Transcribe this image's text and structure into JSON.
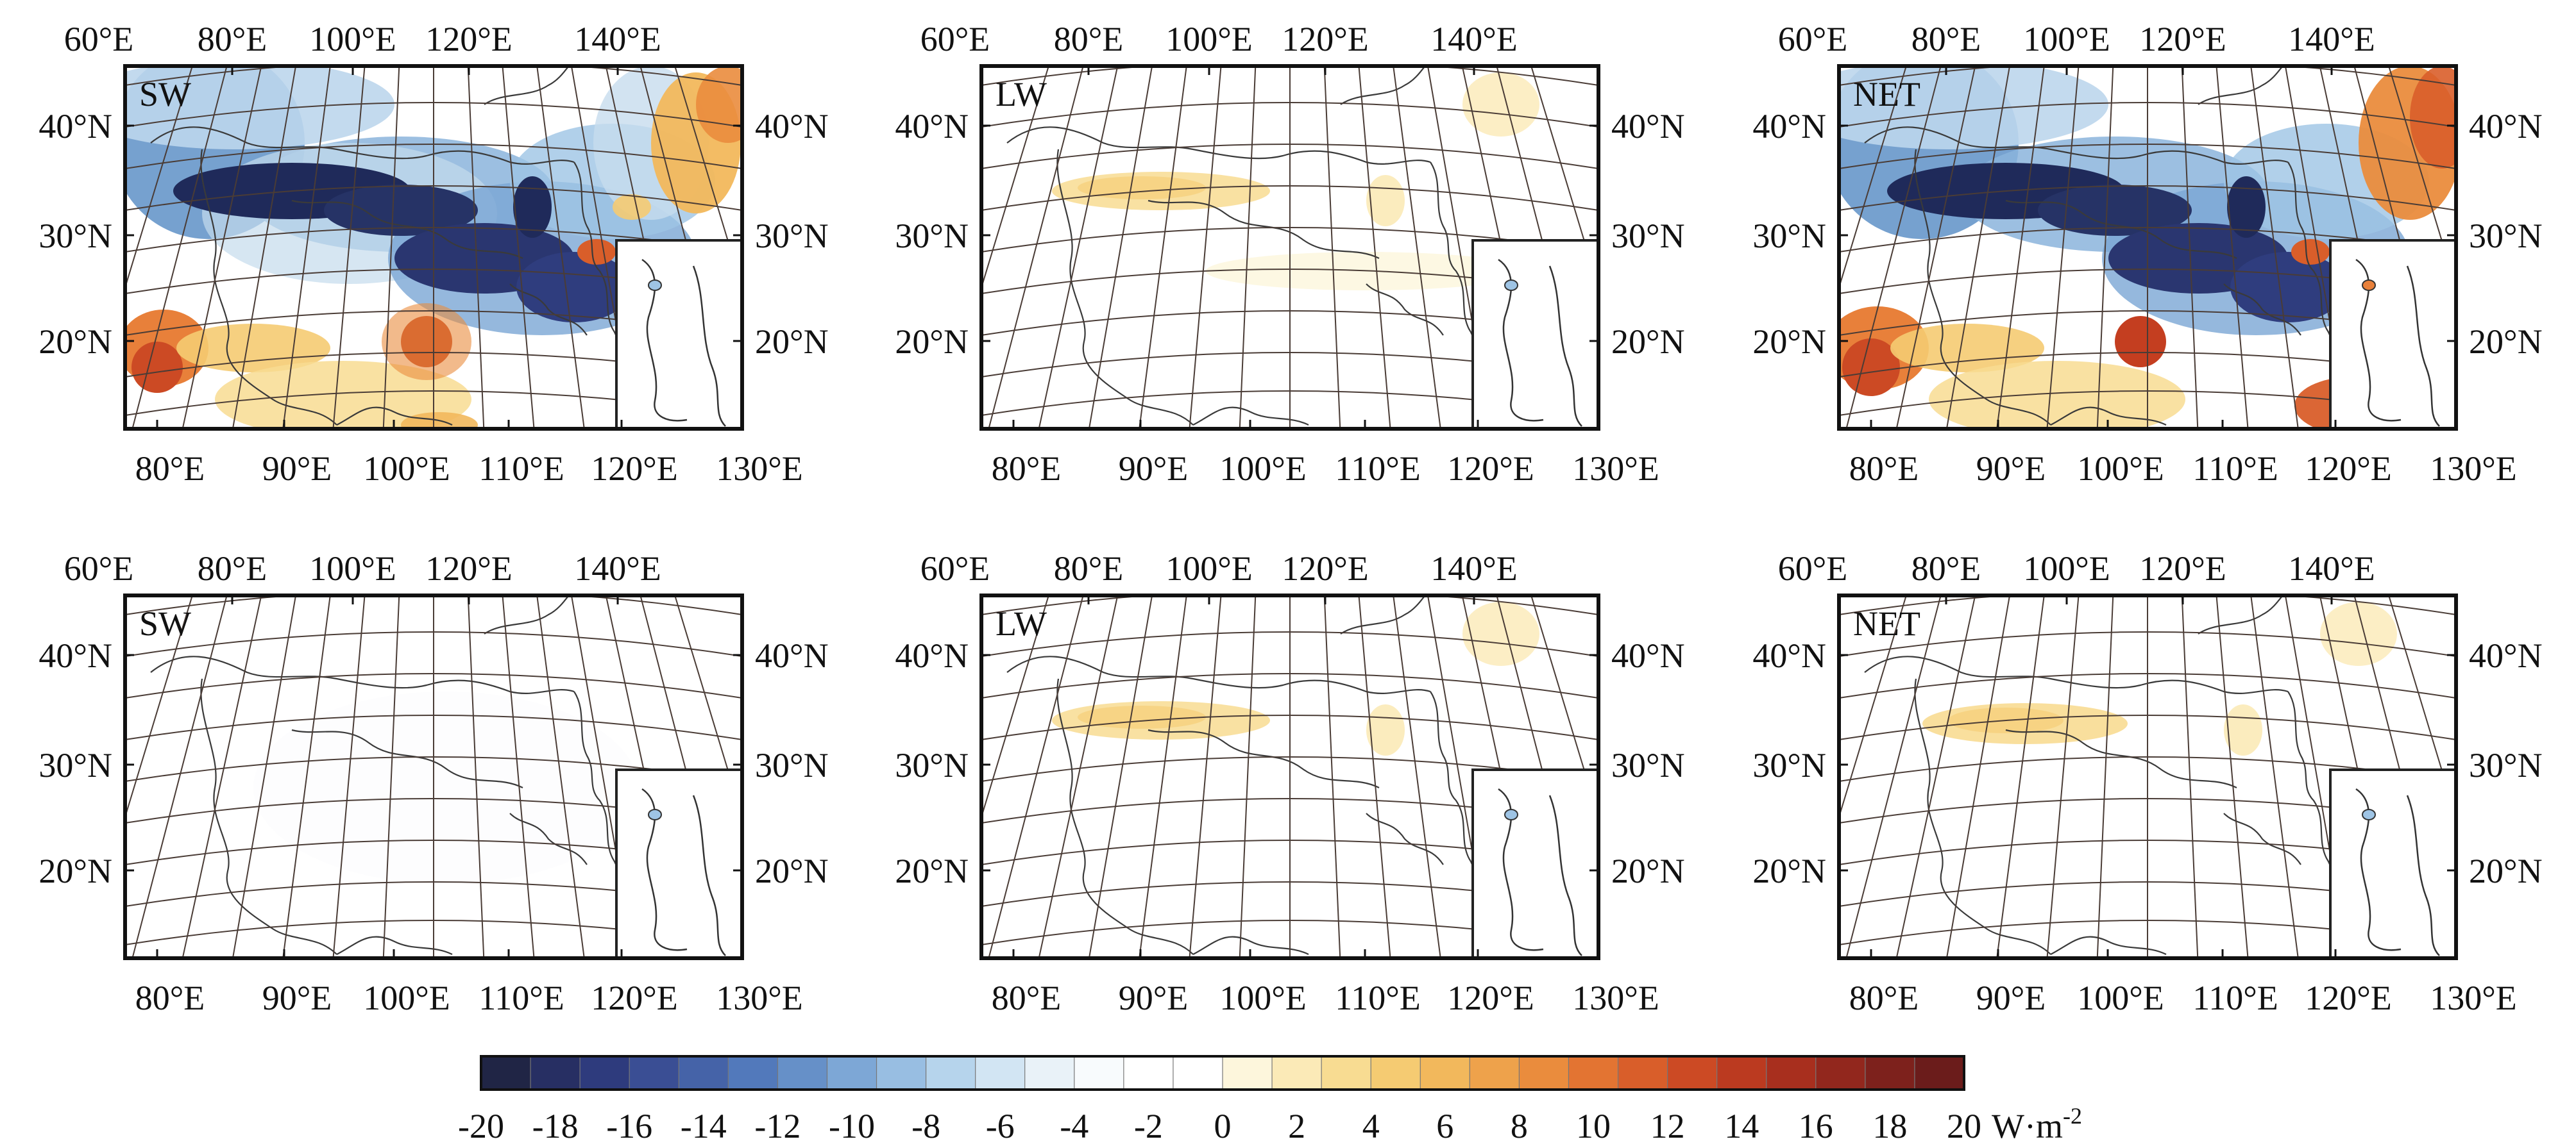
{
  "panels": [
    {
      "label": "SW"
    },
    {
      "label": "LW"
    },
    {
      "label": "NET"
    },
    {
      "label": "SW"
    },
    {
      "label": "LW"
    },
    {
      "label": "NET"
    }
  ],
  "axis_labels": {
    "top_lon": [
      "60°E",
      "80°E",
      "100°E",
      "120°E",
      "140°E"
    ],
    "bottom_lon": [
      "80°E",
      "90°E",
      "100°E",
      "110°E",
      "120°E",
      "130°E"
    ],
    "lat": [
      "40°N",
      "30°N",
      "20°N"
    ]
  },
  "colorbar": {
    "tick_labels": [
      "-20",
      "-18",
      "-16",
      "-14",
      "-12",
      "-10",
      "-8",
      "-6",
      "-4",
      "-2",
      "0",
      "2",
      "4",
      "6",
      "8",
      "10",
      "12",
      "14",
      "16",
      "18",
      "20"
    ],
    "unit": "W·m",
    "unit_exponent": "-2",
    "range": [
      -20,
      20
    ],
    "colors": [
      "#202545",
      "#272f63",
      "#2e3b7d",
      "#3a4e94",
      "#4563a8",
      "#5279bb",
      "#6690c8",
      "#7da7d6",
      "#98bee2",
      "#b6d4ec",
      "#d2e5f3",
      "#e9f2f8",
      "#f8fbfd",
      "#ffffff",
      "#ffffff",
      "#fdf6dc",
      "#fbeab7",
      "#f8dc92",
      "#f5cb72",
      "#f2b85c",
      "#eea24b",
      "#ea8c3d",
      "#e37432",
      "#d95e2a",
      "#cc4a24",
      "#bb3a20",
      "#a82f1e",
      "#92271d",
      "#7d211c",
      "#6b1c1b"
    ]
  }
}
